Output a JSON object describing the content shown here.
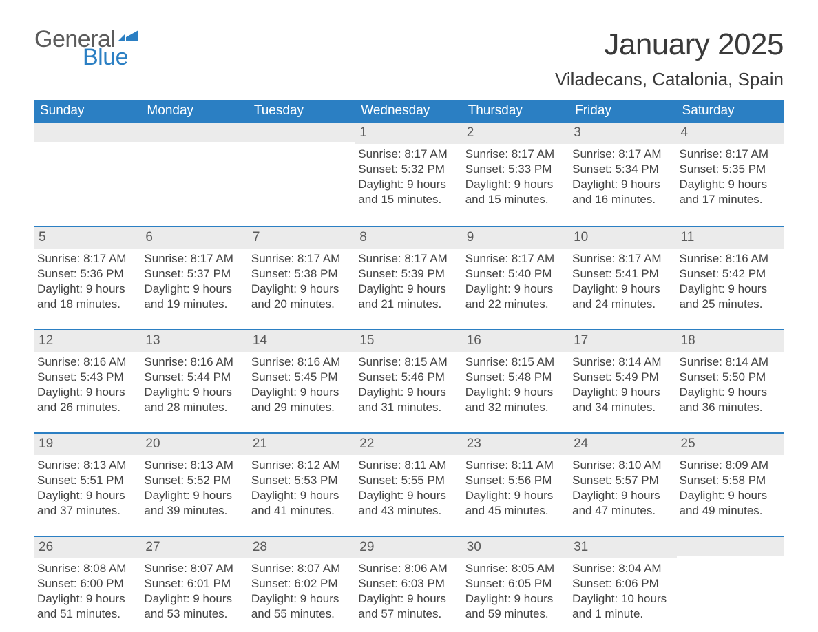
{
  "logo": {
    "text1": "General",
    "text2": "Blue",
    "flag_color": "#2b7fc3"
  },
  "title": "January 2025",
  "location": "Viladecans, Catalonia, Spain",
  "colors": {
    "header_bg": "#2b7fc3",
    "header_text": "#ffffff",
    "daynum_bg": "#ebebeb",
    "daynum_text": "#5a5a5a",
    "body_text": "#434343",
    "row_border": "#2b7fc3",
    "page_bg": "#ffffff"
  },
  "typography": {
    "title_fontsize": 44,
    "location_fontsize": 26,
    "weekday_fontsize": 19,
    "daynum_fontsize": 19,
    "body_fontsize": 17
  },
  "weekdays": [
    "Sunday",
    "Monday",
    "Tuesday",
    "Wednesday",
    "Thursday",
    "Friday",
    "Saturday"
  ],
  "weeks": [
    [
      null,
      null,
      null,
      {
        "n": "1",
        "sunrise": "Sunrise: 8:17 AM",
        "sunset": "Sunset: 5:32 PM",
        "daylight": "Daylight: 9 hours and 15 minutes."
      },
      {
        "n": "2",
        "sunrise": "Sunrise: 8:17 AM",
        "sunset": "Sunset: 5:33 PM",
        "daylight": "Daylight: 9 hours and 15 minutes."
      },
      {
        "n": "3",
        "sunrise": "Sunrise: 8:17 AM",
        "sunset": "Sunset: 5:34 PM",
        "daylight": "Daylight: 9 hours and 16 minutes."
      },
      {
        "n": "4",
        "sunrise": "Sunrise: 8:17 AM",
        "sunset": "Sunset: 5:35 PM",
        "daylight": "Daylight: 9 hours and 17 minutes."
      }
    ],
    [
      {
        "n": "5",
        "sunrise": "Sunrise: 8:17 AM",
        "sunset": "Sunset: 5:36 PM",
        "daylight": "Daylight: 9 hours and 18 minutes."
      },
      {
        "n": "6",
        "sunrise": "Sunrise: 8:17 AM",
        "sunset": "Sunset: 5:37 PM",
        "daylight": "Daylight: 9 hours and 19 minutes."
      },
      {
        "n": "7",
        "sunrise": "Sunrise: 8:17 AM",
        "sunset": "Sunset: 5:38 PM",
        "daylight": "Daylight: 9 hours and 20 minutes."
      },
      {
        "n": "8",
        "sunrise": "Sunrise: 8:17 AM",
        "sunset": "Sunset: 5:39 PM",
        "daylight": "Daylight: 9 hours and 21 minutes."
      },
      {
        "n": "9",
        "sunrise": "Sunrise: 8:17 AM",
        "sunset": "Sunset: 5:40 PM",
        "daylight": "Daylight: 9 hours and 22 minutes."
      },
      {
        "n": "10",
        "sunrise": "Sunrise: 8:17 AM",
        "sunset": "Sunset: 5:41 PM",
        "daylight": "Daylight: 9 hours and 24 minutes."
      },
      {
        "n": "11",
        "sunrise": "Sunrise: 8:16 AM",
        "sunset": "Sunset: 5:42 PM",
        "daylight": "Daylight: 9 hours and 25 minutes."
      }
    ],
    [
      {
        "n": "12",
        "sunrise": "Sunrise: 8:16 AM",
        "sunset": "Sunset: 5:43 PM",
        "daylight": "Daylight: 9 hours and 26 minutes."
      },
      {
        "n": "13",
        "sunrise": "Sunrise: 8:16 AM",
        "sunset": "Sunset: 5:44 PM",
        "daylight": "Daylight: 9 hours and 28 minutes."
      },
      {
        "n": "14",
        "sunrise": "Sunrise: 8:16 AM",
        "sunset": "Sunset: 5:45 PM",
        "daylight": "Daylight: 9 hours and 29 minutes."
      },
      {
        "n": "15",
        "sunrise": "Sunrise: 8:15 AM",
        "sunset": "Sunset: 5:46 PM",
        "daylight": "Daylight: 9 hours and 31 minutes."
      },
      {
        "n": "16",
        "sunrise": "Sunrise: 8:15 AM",
        "sunset": "Sunset: 5:48 PM",
        "daylight": "Daylight: 9 hours and 32 minutes."
      },
      {
        "n": "17",
        "sunrise": "Sunrise: 8:14 AM",
        "sunset": "Sunset: 5:49 PM",
        "daylight": "Daylight: 9 hours and 34 minutes."
      },
      {
        "n": "18",
        "sunrise": "Sunrise: 8:14 AM",
        "sunset": "Sunset: 5:50 PM",
        "daylight": "Daylight: 9 hours and 36 minutes."
      }
    ],
    [
      {
        "n": "19",
        "sunrise": "Sunrise: 8:13 AM",
        "sunset": "Sunset: 5:51 PM",
        "daylight": "Daylight: 9 hours and 37 minutes."
      },
      {
        "n": "20",
        "sunrise": "Sunrise: 8:13 AM",
        "sunset": "Sunset: 5:52 PM",
        "daylight": "Daylight: 9 hours and 39 minutes."
      },
      {
        "n": "21",
        "sunrise": "Sunrise: 8:12 AM",
        "sunset": "Sunset: 5:53 PM",
        "daylight": "Daylight: 9 hours and 41 minutes."
      },
      {
        "n": "22",
        "sunrise": "Sunrise: 8:11 AM",
        "sunset": "Sunset: 5:55 PM",
        "daylight": "Daylight: 9 hours and 43 minutes."
      },
      {
        "n": "23",
        "sunrise": "Sunrise: 8:11 AM",
        "sunset": "Sunset: 5:56 PM",
        "daylight": "Daylight: 9 hours and 45 minutes."
      },
      {
        "n": "24",
        "sunrise": "Sunrise: 8:10 AM",
        "sunset": "Sunset: 5:57 PM",
        "daylight": "Daylight: 9 hours and 47 minutes."
      },
      {
        "n": "25",
        "sunrise": "Sunrise: 8:09 AM",
        "sunset": "Sunset: 5:58 PM",
        "daylight": "Daylight: 9 hours and 49 minutes."
      }
    ],
    [
      {
        "n": "26",
        "sunrise": "Sunrise: 8:08 AM",
        "sunset": "Sunset: 6:00 PM",
        "daylight": "Daylight: 9 hours and 51 minutes."
      },
      {
        "n": "27",
        "sunrise": "Sunrise: 8:07 AM",
        "sunset": "Sunset: 6:01 PM",
        "daylight": "Daylight: 9 hours and 53 minutes."
      },
      {
        "n": "28",
        "sunrise": "Sunrise: 8:07 AM",
        "sunset": "Sunset: 6:02 PM",
        "daylight": "Daylight: 9 hours and 55 minutes."
      },
      {
        "n": "29",
        "sunrise": "Sunrise: 8:06 AM",
        "sunset": "Sunset: 6:03 PM",
        "daylight": "Daylight: 9 hours and 57 minutes."
      },
      {
        "n": "30",
        "sunrise": "Sunrise: 8:05 AM",
        "sunset": "Sunset: 6:05 PM",
        "daylight": "Daylight: 9 hours and 59 minutes."
      },
      {
        "n": "31",
        "sunrise": "Sunrise: 8:04 AM",
        "sunset": "Sunset: 6:06 PM",
        "daylight": "Daylight: 10 hours and 1 minute."
      },
      null
    ]
  ]
}
